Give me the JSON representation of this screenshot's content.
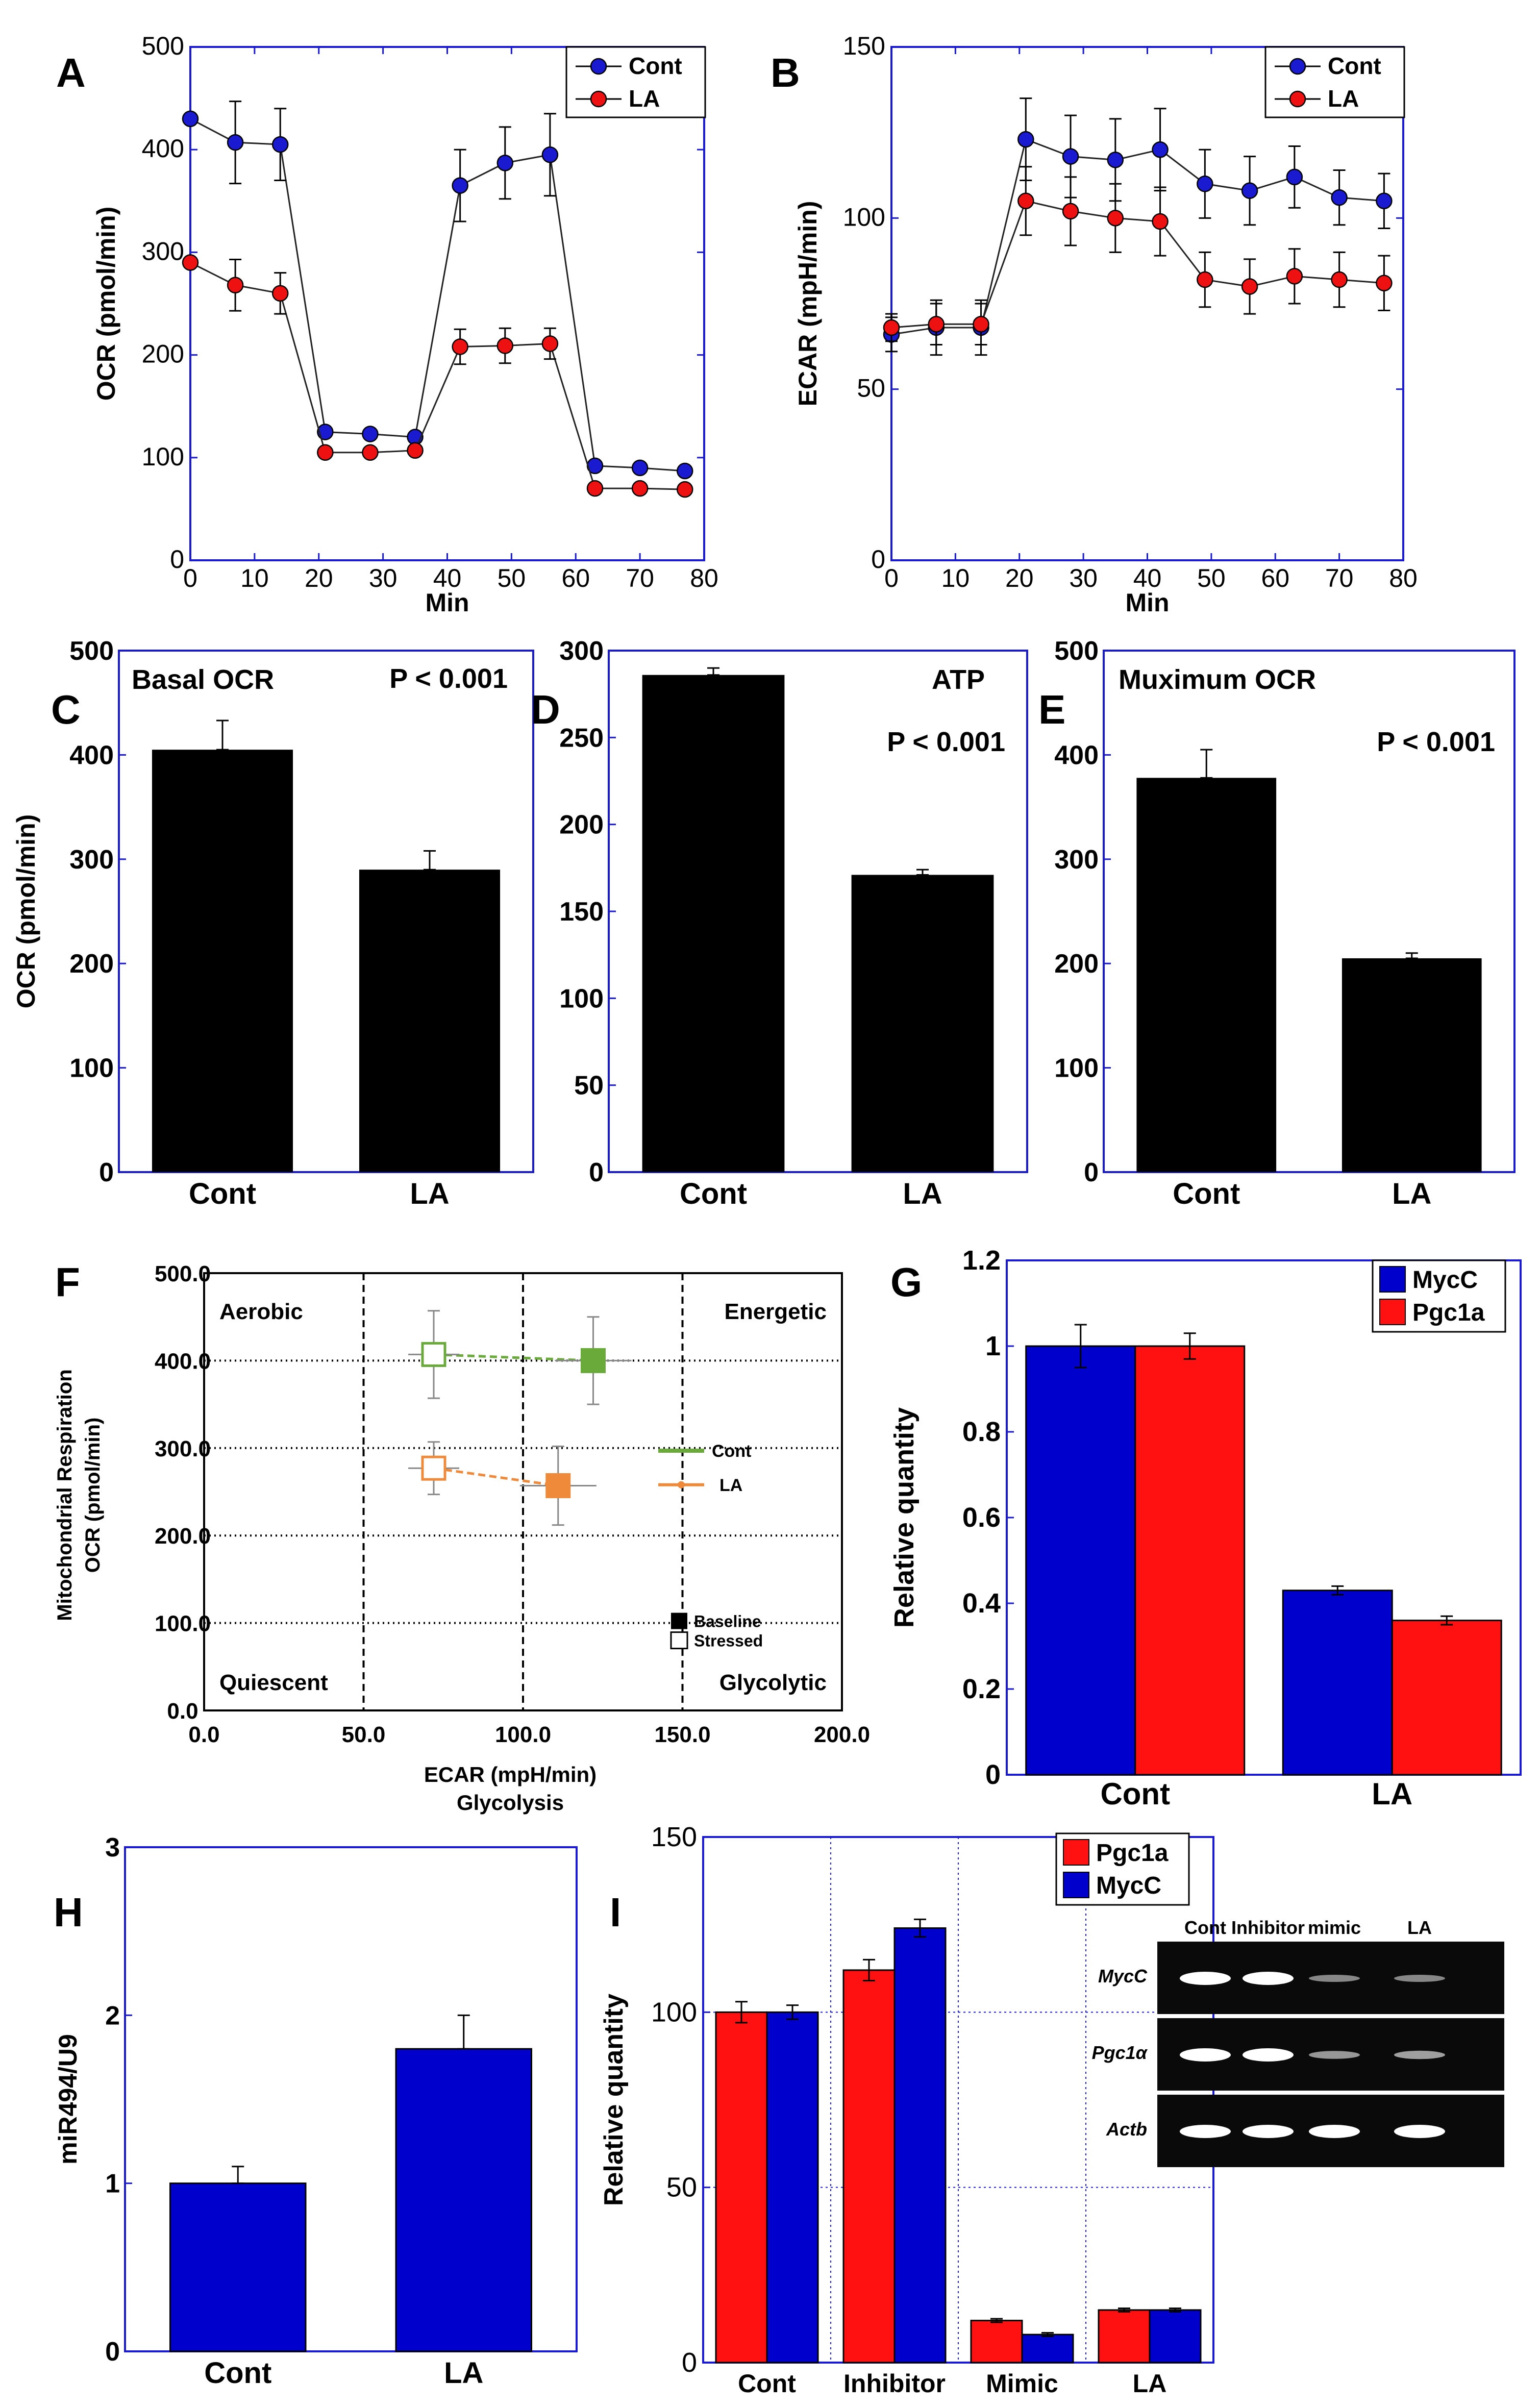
{
  "figure_colors": {
    "cont_marker": "#1a1ad0",
    "la_marker": "#ee1111",
    "blue_bar": "#0000cc",
    "red_bar": "#ff1111",
    "frame": "#1a1ad0",
    "black": "#000000",
    "cont_green": "#6aaa3a",
    "la_orange": "#ef8a3a"
  },
  "chart_data": [
    {
      "panel": "A",
      "type": "line",
      "xlabel": "Min",
      "ylabel": "OCR (pmol/min)",
      "xlim": [
        0,
        80
      ],
      "ylim": [
        0,
        500
      ],
      "xticks": [
        "0",
        "10",
        "20",
        "30",
        "40",
        "50",
        "60",
        "70",
        "80"
      ],
      "yticks": [
        "0",
        "100",
        "200",
        "300",
        "400",
        "500"
      ],
      "x": [
        0,
        7,
        14,
        21,
        28,
        35,
        42,
        49,
        56,
        63,
        70,
        77
      ],
      "series": [
        {
          "name": "Cont",
          "values": [
            430,
            407,
            405,
            125,
            123,
            120,
            365,
            387,
            395,
            92,
            90,
            87
          ],
          "errors": [
            0,
            40,
            35,
            0,
            0,
            0,
            35,
            35,
            40,
            0,
            0,
            0
          ]
        },
        {
          "name": "LA",
          "values": [
            290,
            268,
            260,
            105,
            105,
            107,
            208,
            209,
            211,
            70,
            70,
            69
          ],
          "errors": [
            0,
            25,
            20,
            0,
            0,
            0,
            17,
            17,
            15,
            0,
            0,
            0
          ]
        }
      ]
    },
    {
      "panel": "B",
      "type": "line",
      "xlabel": "Min",
      "ylabel": "ECAR (mpH/min)",
      "xlim": [
        0,
        80
      ],
      "ylim": [
        0,
        150
      ],
      "xticks": [
        "0",
        "10",
        "20",
        "30",
        "40",
        "50",
        "60",
        "70",
        "80"
      ],
      "yticks": [
        "0",
        "50",
        "100",
        "150"
      ],
      "x": [
        0,
        7,
        14,
        21,
        28,
        35,
        42,
        49,
        56,
        63,
        70,
        77
      ],
      "series": [
        {
          "name": "Cont",
          "values": [
            66,
            68,
            68,
            123,
            118,
            117,
            120,
            110,
            108,
            112,
            106,
            105
          ],
          "errors": [
            5,
            8,
            8,
            12,
            12,
            12,
            12,
            10,
            10,
            9,
            8,
            8
          ]
        },
        {
          "name": "LA",
          "values": [
            68,
            69,
            69,
            105,
            102,
            100,
            99,
            82,
            80,
            83,
            82,
            81
          ],
          "errors": [
            4,
            6,
            6,
            10,
            10,
            10,
            10,
            8,
            8,
            8,
            8,
            8
          ]
        }
      ]
    },
    {
      "panel": "C",
      "type": "bar",
      "title": "Basal OCR",
      "pvalue": "P < 0.001",
      "ylabel": "OCR (pmol/min)",
      "ylim": [
        0,
        500
      ],
      "yticks": [
        "0",
        "100",
        "200",
        "300",
        "400",
        "500"
      ],
      "categories": [
        "Cont",
        "LA"
      ],
      "values": [
        405,
        290
      ],
      "errors": [
        28,
        18
      ]
    },
    {
      "panel": "D",
      "type": "bar",
      "title": "ATP",
      "pvalue": "P < 0.001",
      "ylim": [
        0,
        300
      ],
      "yticks": [
        "0",
        "50",
        "100",
        "150",
        "200",
        "250",
        "300"
      ],
      "categories": [
        "Cont",
        "LA"
      ],
      "values": [
        286,
        171
      ],
      "errors": [
        4,
        3
      ]
    },
    {
      "panel": "E",
      "type": "bar",
      "title": "Muximum OCR",
      "pvalue": "P < 0.001",
      "ylim": [
        0,
        500
      ],
      "yticks": [
        "0",
        "100",
        "200",
        "300",
        "400",
        "500"
      ],
      "categories": [
        "Cont",
        "LA"
      ],
      "values": [
        378,
        205
      ],
      "errors": [
        27,
        5
      ]
    },
    {
      "panel": "F",
      "type": "scatter",
      "xlabel": "ECAR (mpH/min)",
      "xlabel2": "Glycolysis",
      "ylabel": "Mitochondrial Respiration",
      "ylabel2": "OCR (pmol/min)",
      "xlim": [
        0,
        200
      ],
      "ylim": [
        0,
        500
      ],
      "xticks": [
        "0.0",
        "50.0",
        "100.0",
        "150.0",
        "200.0"
      ],
      "yticks": [
        "0.0",
        "100.0",
        "200.0",
        "300.0",
        "400.0",
        "500.0"
      ],
      "quadrants": [
        "Aerobic",
        "Energetic",
        "Quiescent",
        "Glycolytic"
      ],
      "legend": [
        "Cont",
        "LA"
      ],
      "marker_legend": [
        "Baseline",
        "Stressed"
      ],
      "points": [
        {
          "series": "Cont",
          "state": "Stressed",
          "x": 72,
          "y": 407,
          "xerr": 8,
          "yerr": 50
        },
        {
          "series": "Cont",
          "state": "Baseline",
          "x": 122,
          "y": 400,
          "xerr": 12,
          "yerr": 50
        },
        {
          "series": "LA",
          "state": "Stressed",
          "x": 72,
          "y": 277,
          "xerr": 8,
          "yerr": 30
        },
        {
          "series": "LA",
          "state": "Baseline",
          "x": 111,
          "y": 257,
          "xerr": 12,
          "yerr": 45
        }
      ]
    },
    {
      "panel": "G",
      "type": "bar",
      "ylabel": "Relative quantity",
      "ylim": [
        0,
        1.2
      ],
      "yticks": [
        "0",
        "0.2",
        "0.4",
        "0.6",
        "0.8",
        "1",
        "1.2"
      ],
      "categories": [
        "Cont",
        "LA"
      ],
      "series": [
        {
          "name": "MycC",
          "values": [
            1.0,
            0.43
          ],
          "errors": [
            0.05,
            0.01
          ]
        },
        {
          "name": "Pgc1a",
          "values": [
            1.0,
            0.36
          ],
          "errors": [
            0.03,
            0.01
          ]
        }
      ]
    },
    {
      "panel": "H",
      "type": "bar",
      "ylabel": "miR494/U9",
      "ylim": [
        0,
        3
      ],
      "yticks": [
        "0",
        "1",
        "2",
        "3"
      ],
      "categories": [
        "Cont",
        "LA"
      ],
      "values": [
        1.0,
        1.8
      ],
      "errors": [
        0.1,
        0.2
      ]
    },
    {
      "panel": "I",
      "type": "bar",
      "ylabel": "Relative quantity",
      "ylim": [
        0,
        150
      ],
      "yticks": [
        "0",
        "50",
        "100",
        "150"
      ],
      "categories": [
        "Cont",
        "Inhibitor",
        "Mimic",
        "LA"
      ],
      "series": [
        {
          "name": "Pgc1a",
          "values": [
            100,
            112,
            12,
            15
          ],
          "errors": [
            3,
            3,
            0.5,
            0.5
          ]
        },
        {
          "name": "MycC",
          "values": [
            100,
            124,
            8,
            15
          ],
          "errors": [
            2,
            2.5,
            0.5,
            0.5
          ]
        }
      ],
      "gel": {
        "lanes": [
          "Cont",
          "Inhibitor",
          "mimic",
          "LA"
        ],
        "rows": [
          {
            "gene": "MycC",
            "intensity": [
              1.0,
              1.0,
              0.25,
              0.25
            ]
          },
          {
            "gene": "Pgc1α",
            "intensity": [
              1.0,
              1.0,
              0.35,
              0.4
            ]
          },
          {
            "gene": "Actb",
            "intensity": [
              1.0,
              1.0,
              1.0,
              1.0
            ]
          }
        ]
      }
    }
  ]
}
